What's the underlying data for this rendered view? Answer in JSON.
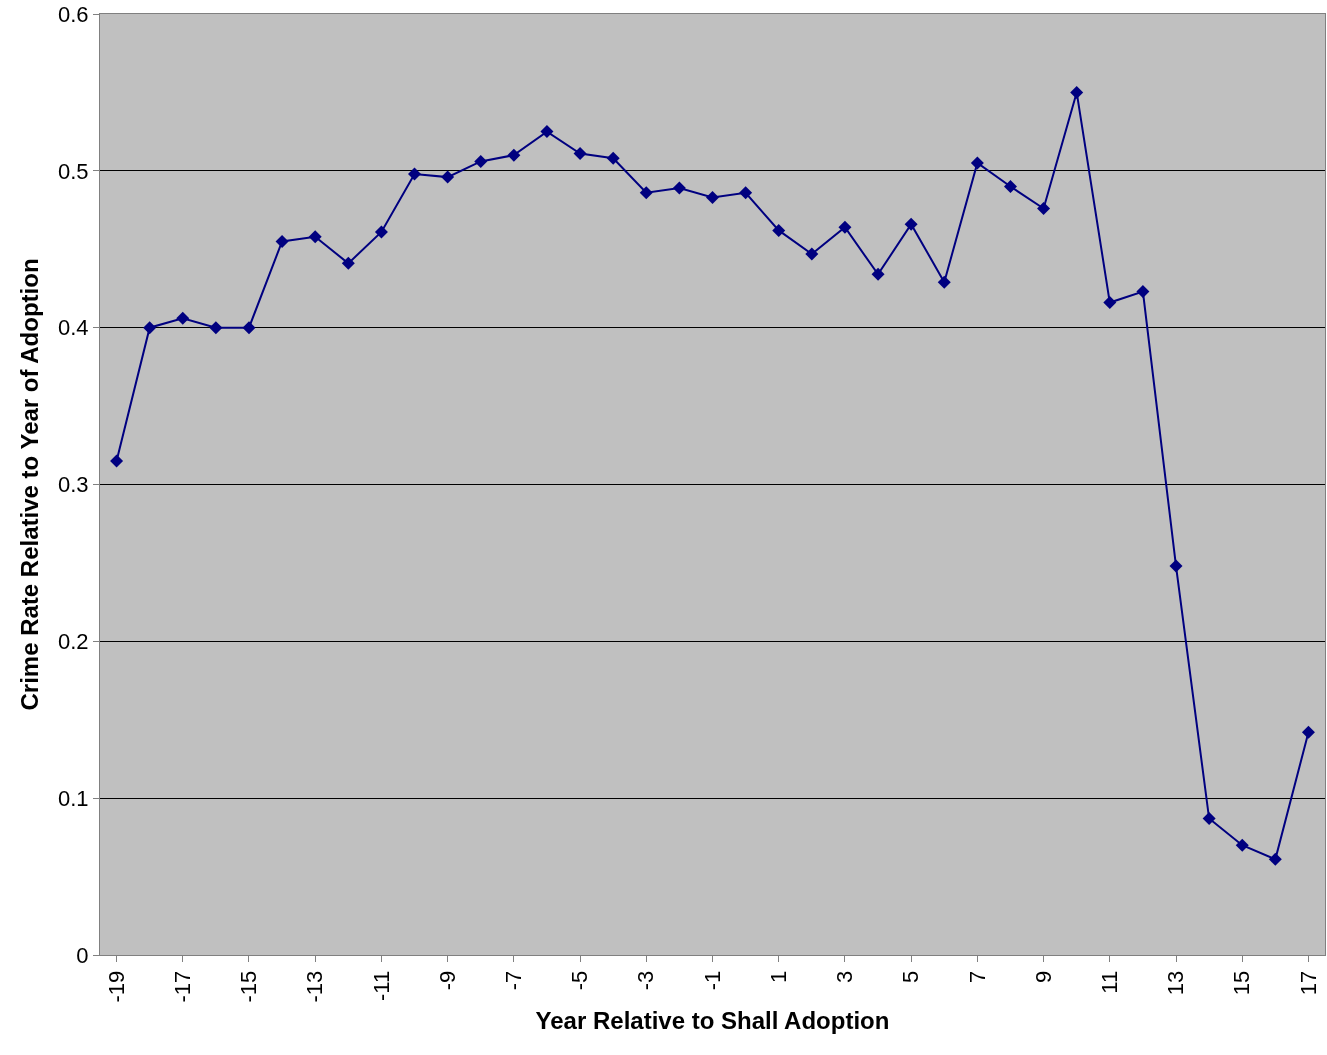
{
  "chart_data": {
    "type": "line",
    "xlabel": "Year Relative to Shall Adoption",
    "ylabel": "Crime Rate Relative to Year of Adoption",
    "categories": [
      "-19",
      null,
      "-17",
      null,
      "-15",
      null,
      "-13",
      null,
      "-11",
      null,
      "-9",
      null,
      "-7",
      null,
      "-5",
      null,
      "-3",
      null,
      "-1",
      null,
      "1",
      null,
      "3",
      null,
      "5",
      null,
      "7",
      null,
      "9",
      null,
      "11",
      null,
      "13",
      null,
      "15",
      null,
      "17"
    ],
    "series": [
      {
        "color": "#000080",
        "values": [
          0.315,
          0.4,
          0.406,
          0.4,
          0.4,
          0.455,
          0.458,
          0.441,
          0.461,
          0.498,
          0.496,
          0.506,
          0.51,
          0.525,
          0.511,
          0.508,
          0.486,
          0.489,
          0.483,
          0.486,
          0.462,
          0.447,
          0.464,
          0.434,
          0.466,
          0.429,
          0.505,
          0.49,
          0.476,
          0.55,
          0.416,
          0.423,
          0.248,
          0.087,
          0.07,
          0.061,
          0.142
        ]
      }
    ],
    "ylim": [
      0,
      0.6
    ],
    "yticks": [
      0,
      0.1,
      0.2,
      0.3,
      0.4,
      0.5,
      0.6
    ],
    "grid": "y",
    "marker": "diamond",
    "line_style": "solid"
  }
}
